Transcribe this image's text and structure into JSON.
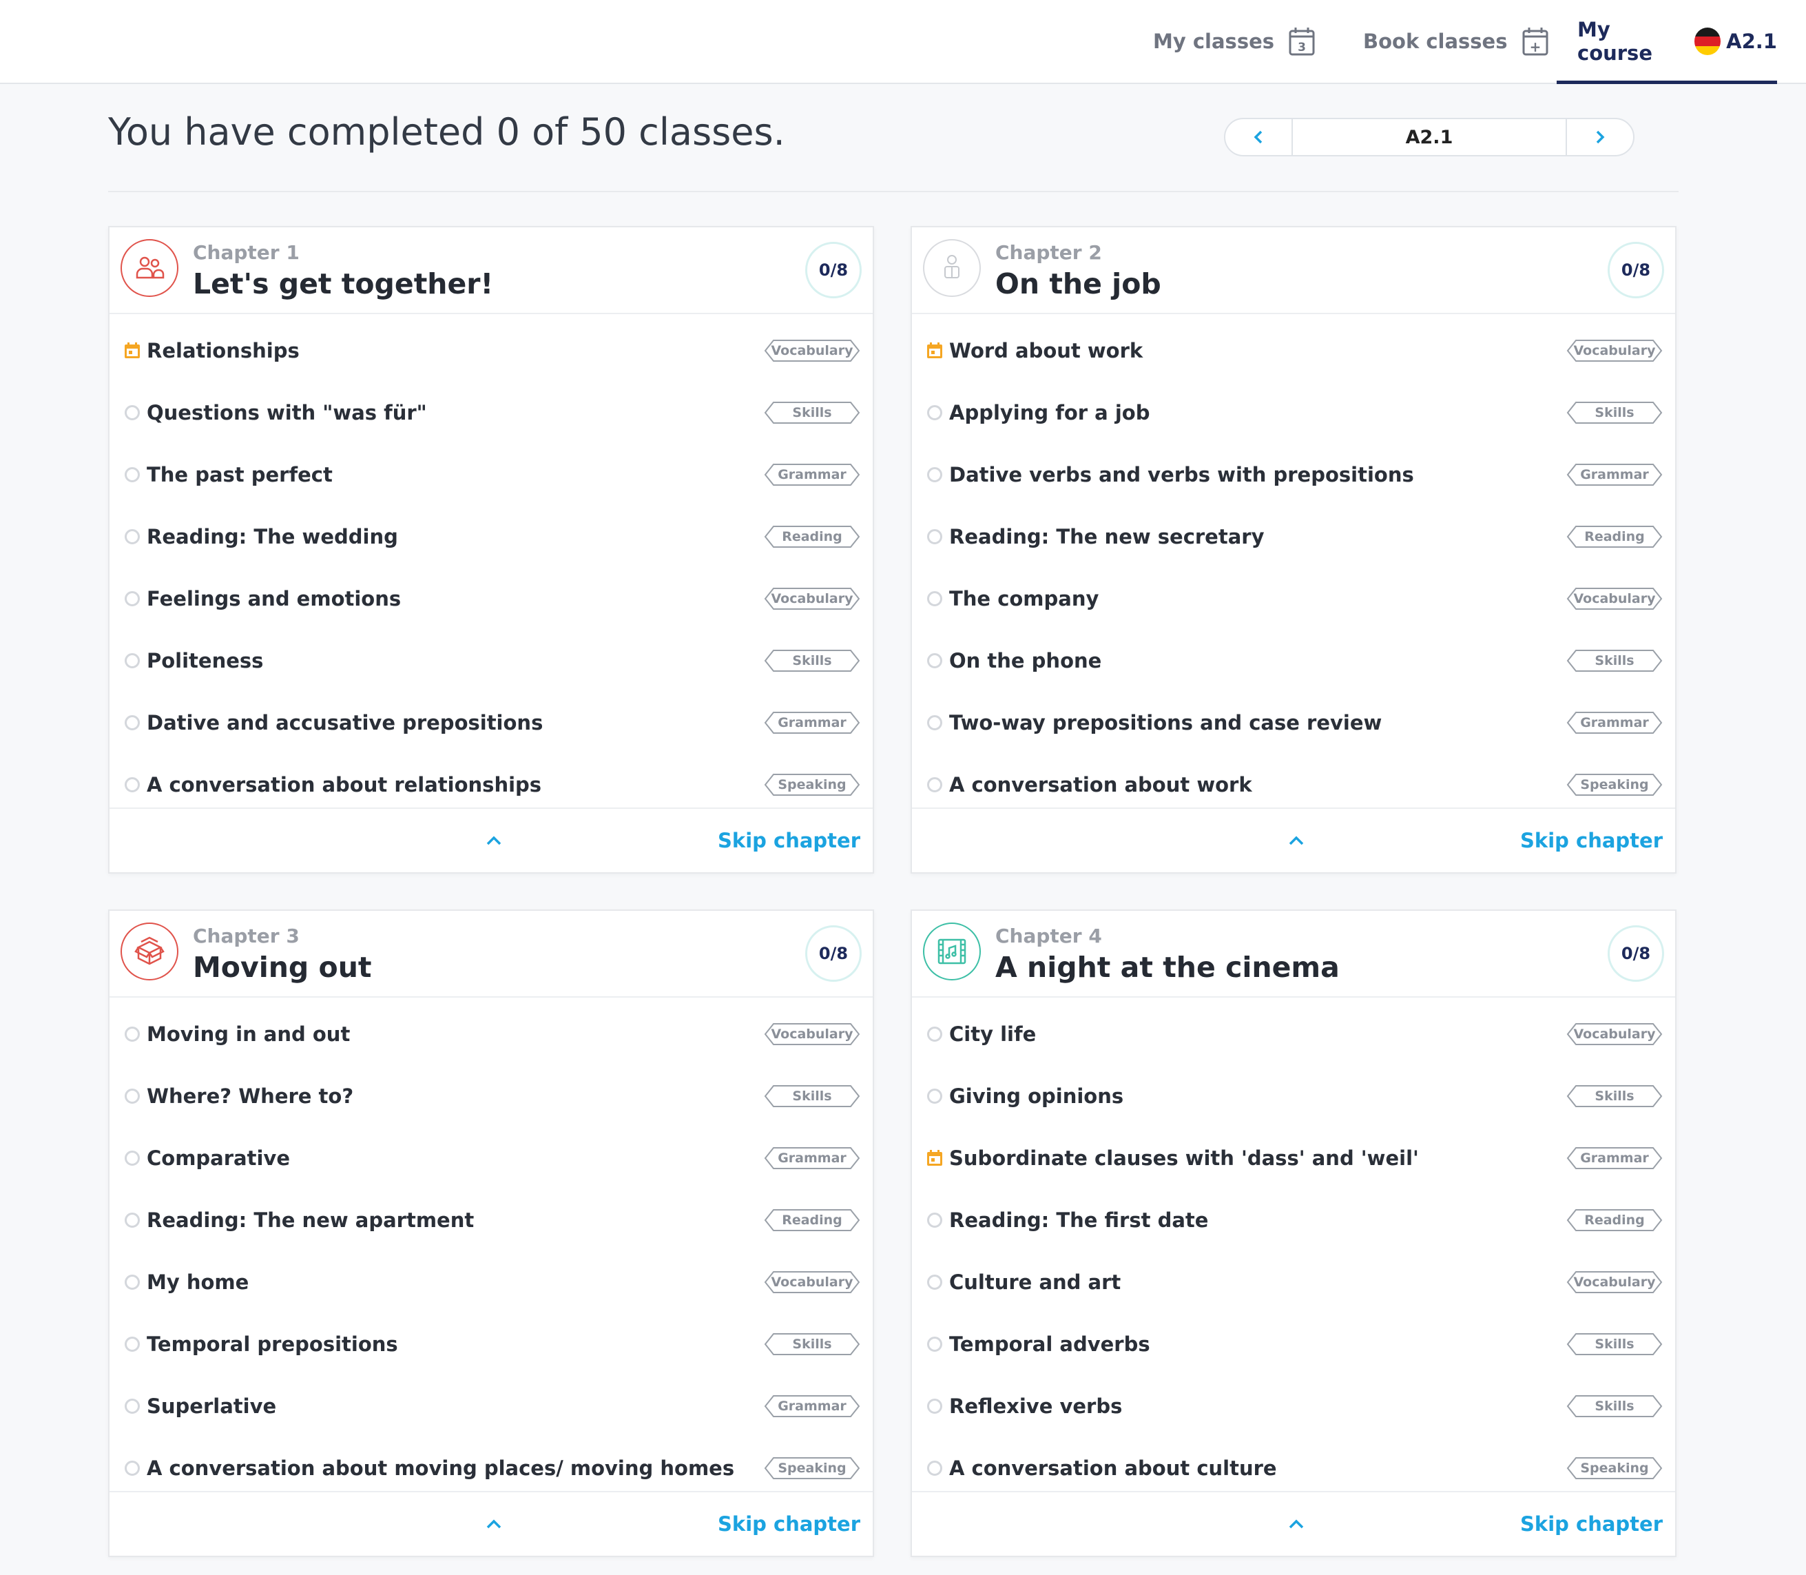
{
  "nav": {
    "my_classes": "My classes",
    "my_classes_count": "3",
    "book_classes": "Book classes",
    "book_classes_symbol": "+",
    "my_course": "My course",
    "course_level": "A2.1"
  },
  "summary": {
    "headline": "You have completed 0 of 50 classes.",
    "level": "A2.1"
  },
  "colors": {
    "accent_blue": "#1ba3e0",
    "navy": "#1d2a5b",
    "scheduled_orange": "#f5a623",
    "chapter_red": "#e0534b",
    "chapter_teal": "#3dbfa6"
  },
  "chapters": [
    {
      "label": "Chapter 1",
      "title": "Let's get together!",
      "progress": "0/8",
      "icon": "people-icon",
      "skip": "Skip chapter",
      "lessons": [
        {
          "title": "Relationships",
          "tag": "Vocabulary",
          "status": "scheduled"
        },
        {
          "title": "Questions with \"was für\"",
          "tag": "Skills",
          "status": "open"
        },
        {
          "title": "The past perfect",
          "tag": "Grammar",
          "status": "open"
        },
        {
          "title": "Reading: The wedding",
          "tag": "Reading",
          "status": "open"
        },
        {
          "title": "Feelings and emotions",
          "tag": "Vocabulary",
          "status": "open"
        },
        {
          "title": "Politeness",
          "tag": "Skills",
          "status": "open"
        },
        {
          "title": "Dative and accusative prepositions",
          "tag": "Grammar",
          "status": "open"
        },
        {
          "title": "A conversation about relationships",
          "tag": "Speaking",
          "status": "open"
        }
      ]
    },
    {
      "label": "Chapter 2",
      "title": "On the job",
      "progress": "0/8",
      "icon": "worker-icon",
      "skip": "Skip chapter",
      "lessons": [
        {
          "title": "Word about work",
          "tag": "Vocabulary",
          "status": "scheduled"
        },
        {
          "title": "Applying for a job",
          "tag": "Skills",
          "status": "open"
        },
        {
          "title": "Dative verbs and verbs with prepositions",
          "tag": "Grammar",
          "status": "open"
        },
        {
          "title": "Reading: The new secretary",
          "tag": "Reading",
          "status": "open"
        },
        {
          "title": "The company",
          "tag": "Vocabulary",
          "status": "open"
        },
        {
          "title": "On the phone",
          "tag": "Skills",
          "status": "open"
        },
        {
          "title": "Two-way prepositions and case review",
          "tag": "Grammar",
          "status": "open"
        },
        {
          "title": "A conversation about work",
          "tag": "Speaking",
          "status": "open"
        }
      ]
    },
    {
      "label": "Chapter 3",
      "title": "Moving out",
      "progress": "0/8",
      "icon": "box-icon",
      "skip": "Skip chapter",
      "lessons": [
        {
          "title": "Moving in and out",
          "tag": "Vocabulary",
          "status": "open"
        },
        {
          "title": "Where? Where to?",
          "tag": "Skills",
          "status": "open"
        },
        {
          "title": "Comparative",
          "tag": "Grammar",
          "status": "open"
        },
        {
          "title": "Reading: The new apartment",
          "tag": "Reading",
          "status": "open"
        },
        {
          "title": "My home",
          "tag": "Vocabulary",
          "status": "open"
        },
        {
          "title": "Temporal prepositions",
          "tag": "Skills",
          "status": "open"
        },
        {
          "title": "Superlative",
          "tag": "Grammar",
          "status": "open"
        },
        {
          "title": "A conversation about moving places/ moving homes",
          "tag": "Speaking",
          "status": "open"
        }
      ]
    },
    {
      "label": "Chapter 4",
      "title": "A night at the cinema",
      "progress": "0/8",
      "icon": "film-icon",
      "skip": "Skip chapter",
      "lessons": [
        {
          "title": "City life",
          "tag": "Vocabulary",
          "status": "open"
        },
        {
          "title": "Giving opinions",
          "tag": "Skills",
          "status": "open"
        },
        {
          "title": "Subordinate clauses with 'dass' and 'weil'",
          "tag": "Grammar",
          "status": "scheduled"
        },
        {
          "title": "Reading: The first date",
          "tag": "Reading",
          "status": "open"
        },
        {
          "title": "Culture and art",
          "tag": "Vocabulary",
          "status": "open"
        },
        {
          "title": "Temporal adverbs",
          "tag": "Skills",
          "status": "open"
        },
        {
          "title": "Reflexive verbs",
          "tag": "Skills",
          "status": "open"
        },
        {
          "title": "A conversation about culture",
          "tag": "Speaking",
          "status": "open"
        }
      ]
    }
  ]
}
